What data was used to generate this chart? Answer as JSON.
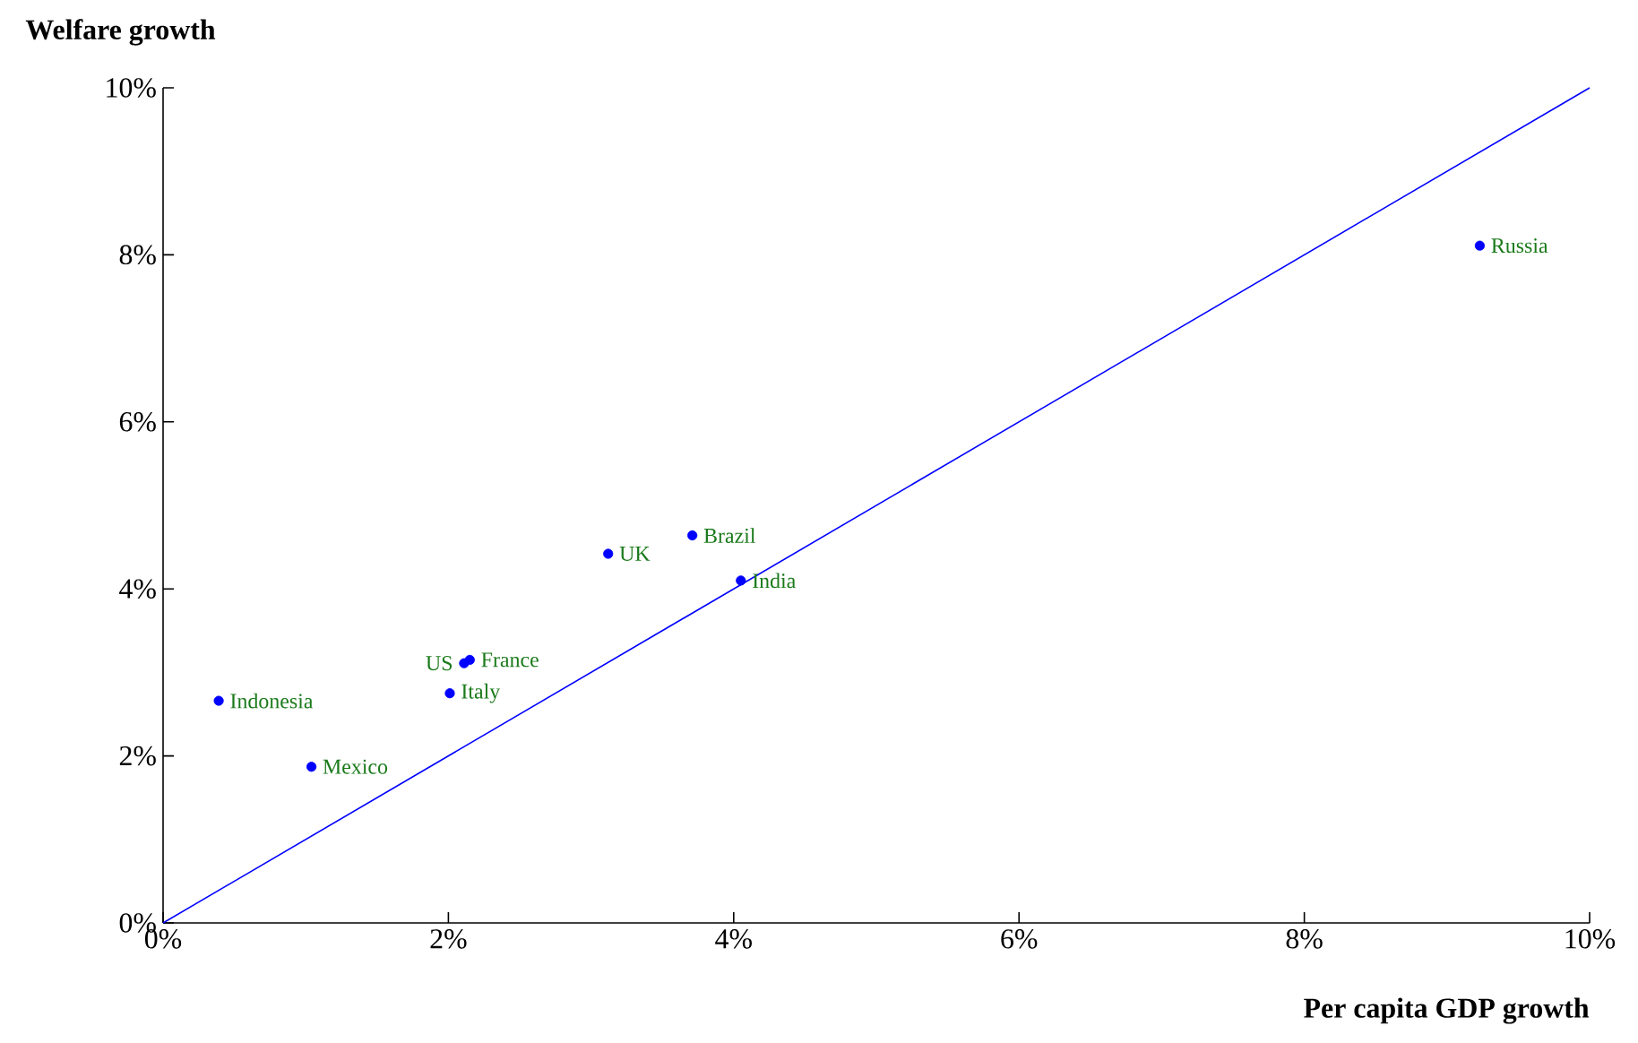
{
  "chart_data": {
    "type": "scatter",
    "xlabel": "Per capita GDP growth",
    "ylabel": "Welfare growth",
    "xlim": [
      0,
      10
    ],
    "ylim": [
      0,
      10
    ],
    "xticks": [
      {
        "value": 0,
        "label": "0%"
      },
      {
        "value": 2,
        "label": "2%"
      },
      {
        "value": 4,
        "label": "4%"
      },
      {
        "value": 6,
        "label": "6%"
      },
      {
        "value": 8,
        "label": "8%"
      },
      {
        "value": 10,
        "label": "10%"
      }
    ],
    "yticks": [
      {
        "value": 0,
        "label": "0%"
      },
      {
        "value": 2,
        "label": "2%"
      },
      {
        "value": 4,
        "label": "4%"
      },
      {
        "value": 6,
        "label": "6%"
      },
      {
        "value": 8,
        "label": "8%"
      },
      {
        "value": 10,
        "label": "10%"
      }
    ],
    "grid": false,
    "marker": "circle",
    "series": [
      {
        "color": "#0000ff",
        "x": [
          9.23,
          3.71,
          3.12,
          4.05,
          2.11,
          2.15,
          2.01,
          0.39,
          1.04
        ],
        "values": [
          8.11,
          4.64,
          4.42,
          4.1,
          3.11,
          3.15,
          2.75,
          2.66,
          1.87
        ]
      },
      {
        "type": "line",
        "marker": "none",
        "color": "#0000ff",
        "x": [
          0,
          10
        ],
        "values": [
          0,
          10
        ]
      }
    ],
    "annotations": [
      {
        "text": "Russia",
        "x": 9.23,
        "y": 8.11
      },
      {
        "text": "Brazil",
        "x": 3.71,
        "y": 4.64
      },
      {
        "text": "UK",
        "x": 3.12,
        "y": 4.42
      },
      {
        "text": "India",
        "x": 4.05,
        "y": 4.1
      },
      {
        "text": "US",
        "x": 2.11,
        "y": 3.11
      },
      {
        "text": "France",
        "x": 2.15,
        "y": 3.15
      },
      {
        "text": "Italy",
        "x": 2.01,
        "y": 2.75
      },
      {
        "text": "Indonesia",
        "x": 0.39,
        "y": 2.66
      },
      {
        "text": "Mexico",
        "x": 1.04,
        "y": 1.87
      }
    ]
  }
}
